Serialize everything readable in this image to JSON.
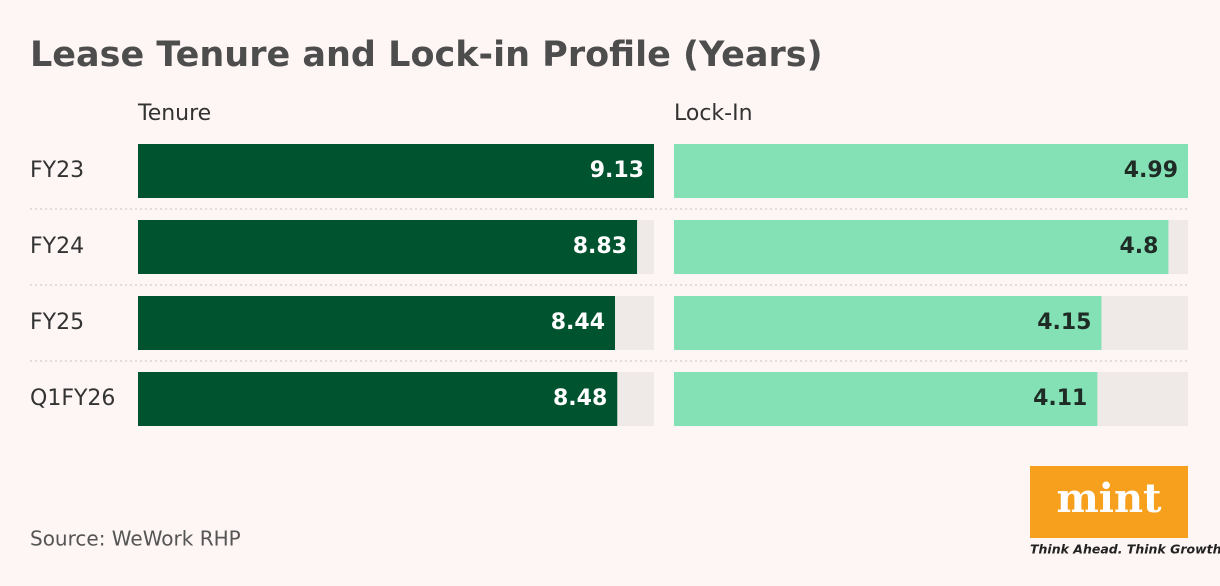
{
  "chart_data": {
    "type": "bar",
    "orientation": "horizontal",
    "title": "Lease Tenure and Lock-in Profile (Years)",
    "categories": [
      "FY23",
      "FY24",
      "FY25",
      "Q1FY26"
    ],
    "series": [
      {
        "name": "Tenure",
        "color": "#00532f",
        "label_color": "#ffffff",
        "track_color": "#efe9e8",
        "xlim": [
          0,
          9.13
        ],
        "values": [
          9.13,
          8.83,
          8.44,
          8.48
        ]
      },
      {
        "name": "Lock-In",
        "color": "#83e1b5",
        "label_color": "#1f2b25",
        "track_color": "#efe9e8",
        "xlim": [
          0,
          4.99
        ],
        "values": [
          4.99,
          4.8,
          4.15,
          4.11
        ]
      }
    ],
    "source": "Source: WeWork RHP"
  },
  "logo": {
    "text": "mint",
    "tagline": "Think Ahead. Think Growth."
  }
}
